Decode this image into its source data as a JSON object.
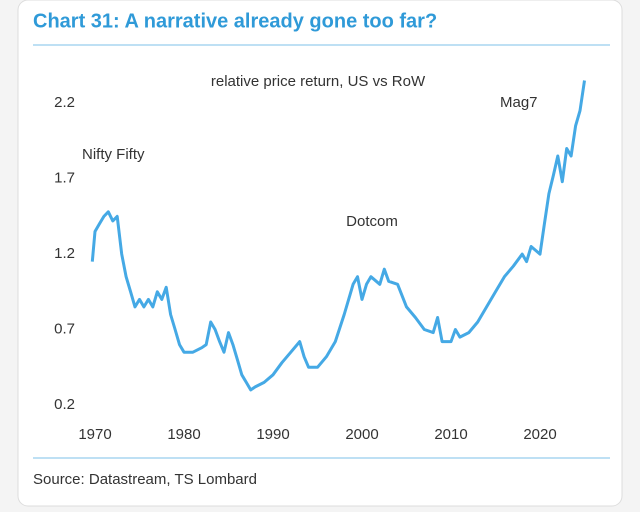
{
  "chart_data": {
    "type": "line",
    "title": "Chart 31: A narrative already gone too far?",
    "subtitle": "relative price return, US vs RoW",
    "annotations": [
      "Nifty Fifty",
      "Dotcom",
      "Mag7"
    ],
    "source": "Source: Datastream, TS Lombard",
    "color": "#45a9e5",
    "grid": false,
    "xlim": [
      1969,
      2026
    ],
    "xticks": [
      1970,
      1980,
      1990,
      2000,
      2010,
      2020
    ],
    "ylim": [
      0.2,
      2.4
    ],
    "yticks": [
      0.2,
      0.7,
      1.2,
      1.7,
      2.2
    ],
    "x": [
      1969.7,
      1970,
      1970.5,
      1971,
      1971.5,
      1972,
      1972.5,
      1973,
      1973.5,
      1974,
      1974.5,
      1975,
      1975.5,
      1976,
      1976.5,
      1977,
      1977.5,
      1978,
      1978.5,
      1979,
      1979.5,
      1980,
      1981,
      1982,
      1982.5,
      1983,
      1983.5,
      1984,
      1984.5,
      1985,
      1985.5,
      1986,
      1986.5,
      1987,
      1987.5,
      1988,
      1989,
      1990,
      1991,
      1992,
      1993,
      1993.5,
      1994,
      1995,
      1996,
      1997,
      1998,
      1999,
      1999.5,
      2000,
      2000.5,
      2001,
      2002,
      2002.5,
      2003,
      2004,
      2005,
      2006,
      2007,
      2008,
      2008.5,
      2009,
      2010,
      2010.5,
      2011,
      2012,
      2013,
      2014,
      2015,
      2016,
      2017,
      2018,
      2018.5,
      2019,
      2020,
      2020.5,
      2021,
      2021.5,
      2022,
      2022.5,
      2023,
      2023.5,
      2024,
      2024.5,
      2025
    ],
    "values": [
      1.15,
      1.35,
      1.4,
      1.45,
      1.48,
      1.42,
      1.45,
      1.2,
      1.05,
      0.95,
      0.85,
      0.9,
      0.85,
      0.9,
      0.85,
      0.95,
      0.9,
      0.98,
      0.8,
      0.7,
      0.6,
      0.55,
      0.55,
      0.58,
      0.6,
      0.75,
      0.7,
      0.62,
      0.55,
      0.68,
      0.6,
      0.5,
      0.4,
      0.35,
      0.3,
      0.32,
      0.35,
      0.4,
      0.48,
      0.55,
      0.62,
      0.52,
      0.45,
      0.45,
      0.52,
      0.62,
      0.8,
      1.0,
      1.05,
      0.9,
      1.0,
      1.05,
      1.0,
      1.1,
      1.02,
      1.0,
      0.85,
      0.78,
      0.7,
      0.68,
      0.78,
      0.62,
      0.62,
      0.7,
      0.65,
      0.68,
      0.75,
      0.85,
      0.95,
      1.05,
      1.12,
      1.2,
      1.15,
      1.25,
      1.2,
      1.4,
      1.6,
      1.72,
      1.85,
      1.68,
      1.9,
      1.85,
      2.05,
      2.15,
      2.35
    ]
  }
}
